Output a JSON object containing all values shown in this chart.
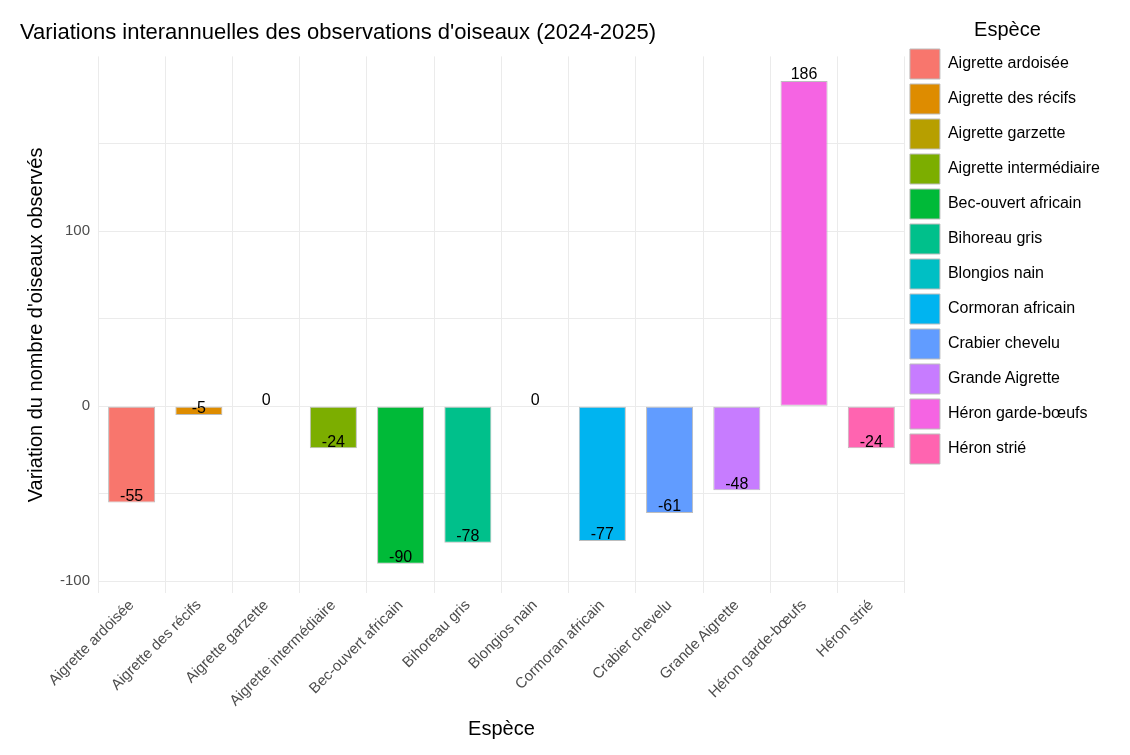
{
  "chart_data": {
    "type": "bar",
    "title": "Variations interannuelles des observations d'oiseaux (2024-2025)",
    "xlabel": "Espèce",
    "ylabel": "Variation du nombre d'oiseaux observés",
    "legend_title": "Espèce",
    "categories": [
      "Aigrette ardoisée",
      "Aigrette des récifs",
      "Aigrette garzette",
      "Aigrette intermédiaire",
      "Bec-ouvert africain",
      "Bihoreau gris",
      "Blongios nain",
      "Cormoran africain",
      "Crabier chevelu",
      "Grande Aigrette",
      "Héron garde-bœufs",
      "Héron strié"
    ],
    "series": [
      {
        "name": "Aigrette ardoisée",
        "color": "#f8766d",
        "values": [
          -55,
          null,
          null,
          null,
          null,
          null,
          null,
          null,
          null,
          null,
          null,
          null
        ]
      },
      {
        "name": "Aigrette des récifs",
        "color": "#de8c00",
        "values": [
          null,
          -5,
          null,
          null,
          null,
          null,
          null,
          null,
          null,
          null,
          null,
          null
        ]
      },
      {
        "name": "Aigrette garzette",
        "color": "#b79f00",
        "values": [
          null,
          null,
          0,
          null,
          null,
          null,
          null,
          null,
          null,
          null,
          null,
          null
        ]
      },
      {
        "name": "Aigrette intermédiaire",
        "color": "#7cae00",
        "values": [
          null,
          null,
          null,
          -24,
          null,
          null,
          null,
          null,
          null,
          null,
          null,
          null
        ]
      },
      {
        "name": "Bec-ouvert africain",
        "color": "#00ba38",
        "values": [
          null,
          null,
          null,
          null,
          -90,
          null,
          null,
          null,
          null,
          null,
          null,
          null
        ]
      },
      {
        "name": "Bihoreau gris",
        "color": "#00c08b",
        "values": [
          null,
          null,
          null,
          null,
          null,
          -78,
          null,
          null,
          null,
          null,
          null,
          null
        ]
      },
      {
        "name": "Blongios nain",
        "color": "#00bfc4",
        "values": [
          null,
          null,
          null,
          null,
          null,
          null,
          0,
          null,
          null,
          null,
          null,
          null
        ]
      },
      {
        "name": "Cormoran africain",
        "color": "#00b4f0",
        "values": [
          null,
          null,
          null,
          null,
          null,
          null,
          null,
          -77,
          null,
          null,
          null,
          null
        ]
      },
      {
        "name": "Crabier chevelu",
        "color": "#619cff",
        "values": [
          null,
          null,
          null,
          null,
          null,
          null,
          null,
          null,
          -61,
          null,
          null,
          null
        ]
      },
      {
        "name": "Grande Aigrette",
        "color": "#c77cff",
        "values": [
          null,
          null,
          null,
          null,
          null,
          null,
          null,
          null,
          null,
          -48,
          null,
          null
        ]
      },
      {
        "name": "Héron garde-bœufs",
        "color": "#f564e3",
        "values": [
          null,
          null,
          null,
          null,
          null,
          null,
          null,
          null,
          null,
          null,
          186,
          null
        ]
      },
      {
        "name": "Héron strié",
        "color": "#ff64b0",
        "values": [
          null,
          null,
          null,
          null,
          null,
          null,
          null,
          null,
          null,
          null,
          null,
          -24
        ]
      }
    ],
    "ylim": [
      -107,
      200
    ],
    "yticks": [
      -100,
      {
        "value": -50,
        "label": null
      },
      0,
      {
        "value": 50,
        "label": null
      },
      100,
      {
        "value": 150,
        "label": null
      }
    ],
    "grid": true,
    "legend": "right",
    "data_labels": true
  }
}
